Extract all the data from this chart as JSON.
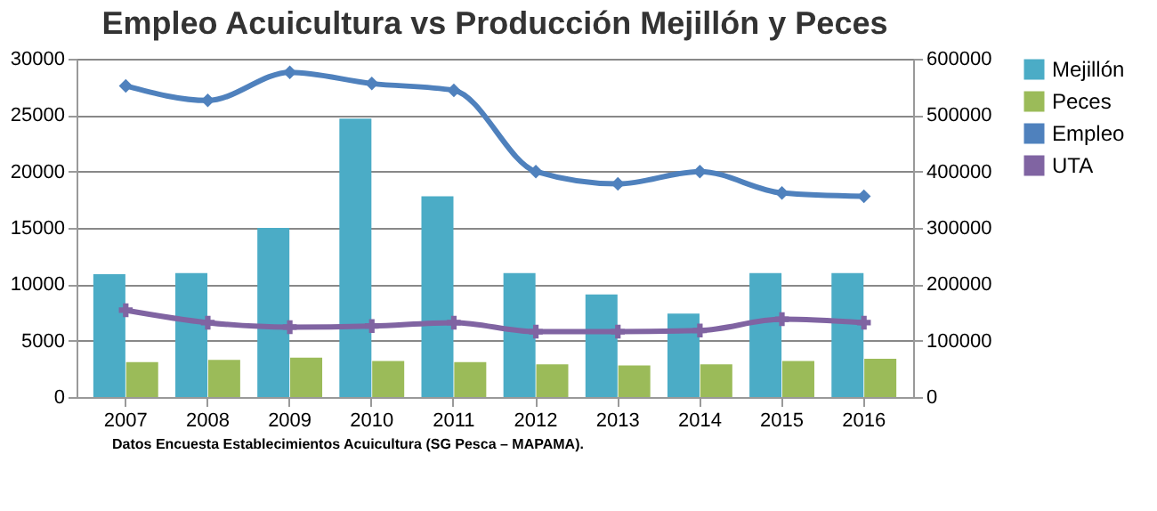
{
  "chart_data": {
    "type": "bar",
    "title": "Empleo Acuicultura vs Producción Mejillón y Peces",
    "categories": [
      "2007",
      "2008",
      "2009",
      "2010",
      "2011",
      "2012",
      "2013",
      "2014",
      "2015",
      "2016"
    ],
    "series": [
      {
        "name": "Mejillón",
        "axis": "y2",
        "color": "#4bacc6",
        "values": [
          218000,
          220000,
          300000,
          494000,
          356000,
          220000,
          182000,
          148000,
          220000,
          220000
        ]
      },
      {
        "name": "Peces",
        "axis": "y2",
        "color": "#9bbb59",
        "values": [
          62000,
          66000,
          70000,
          64000,
          62000,
          58000,
          56000,
          58000,
          64000,
          68000
        ]
      },
      {
        "name": "Empleo",
        "type": "line",
        "color": "#4f81bd",
        "marker": "diamond",
        "values": [
          27600,
          26300,
          28800,
          27800,
          27200,
          20000,
          18900,
          20000,
          18100,
          17800
        ]
      },
      {
        "name": "UTA",
        "type": "line",
        "color": "#8064a2",
        "marker": "cross",
        "values": [
          7700,
          6600,
          6200,
          6300,
          6600,
          5800,
          5800,
          5900,
          6900,
          6600
        ]
      }
    ],
    "ylim": [
      0,
      30000
    ],
    "yticks": [
      0,
      {
        "value": 5000,
        "label": "5000"
      },
      {
        "value": 10000,
        "label": "10000"
      },
      {
        "value": 15000,
        "label": "15000"
      },
      {
        "value": 20000,
        "label": "20000"
      },
      {
        "value": 25000,
        "label": "25000"
      },
      {
        "value": 30000,
        "label": "30000"
      }
    ],
    "y2lim": [
      0,
      600000
    ],
    "y2ticks": [
      0,
      {
        "value": 100000,
        "label": "100000"
      },
      {
        "value": 200000,
        "label": "200000"
      },
      {
        "value": 300000,
        "label": "300000"
      },
      {
        "value": 400000,
        "label": "400000"
      },
      {
        "value": 500000,
        "label": "500000"
      },
      {
        "value": 600000,
        "label": "600000"
      }
    ],
    "grid": "y",
    "legend": "right",
    "annotations": [
      "Datos Encuesta Establecimientos Acuicultura (SG Pesca – MAPAMA)."
    ]
  }
}
